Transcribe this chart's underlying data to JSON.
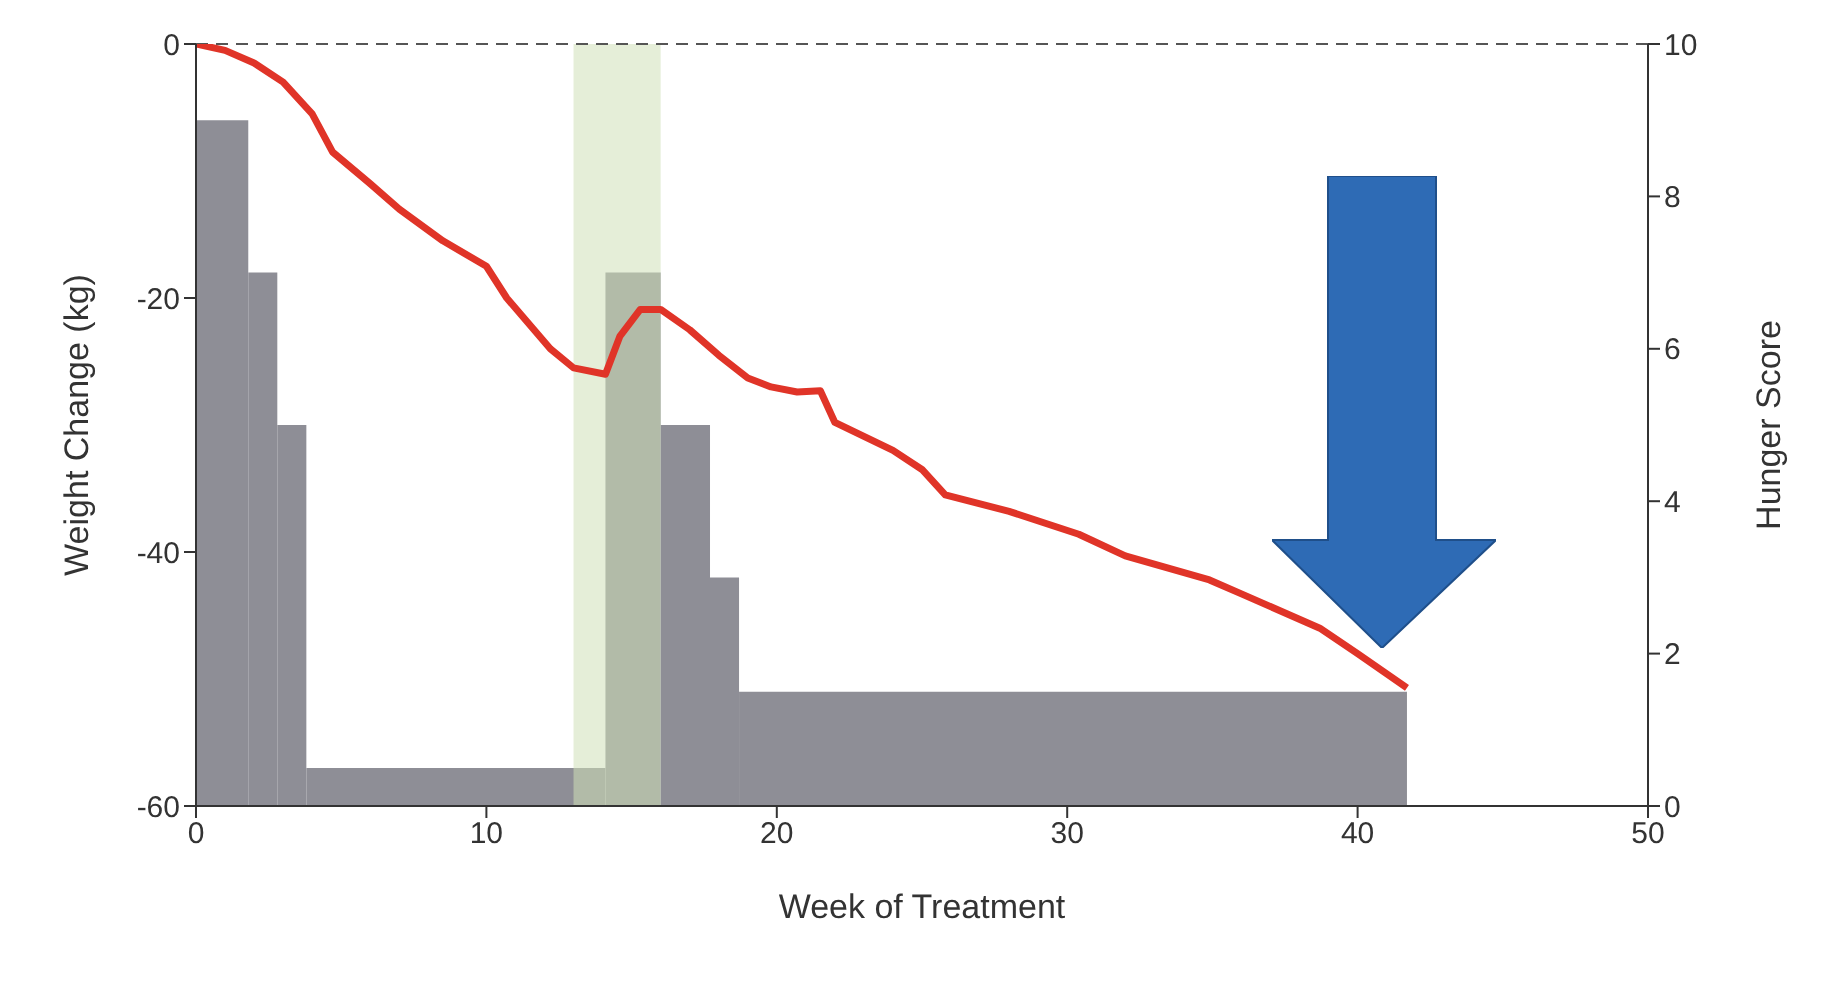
{
  "chart_data": {
    "type": "line",
    "xlabel": "Week of Treatment",
    "ylabel": "Weight Change (kg)",
    "y2label": "Hunger Score",
    "xlim": [
      0,
      50
    ],
    "xticks": [
      0,
      10,
      20,
      30,
      40,
      50
    ],
    "ylim": [
      -60,
      0
    ],
    "yticks": [
      -60,
      -40,
      -20,
      0
    ],
    "y2lim": [
      0,
      10
    ],
    "y2ticks": [
      0,
      2,
      4,
      6,
      8,
      10
    ],
    "grid": false,
    "legend": false,
    "marker": "none",
    "series": [
      {
        "type": "histogram",
        "axis": "y2",
        "color": "#8e8e96",
        "bins": [
          0,
          1.8,
          2.8,
          3.8,
          14.1,
          16,
          17.7,
          18.7,
          41.7
        ],
        "values": [
          9,
          7,
          5,
          0.5,
          7,
          5,
          3,
          1.5
        ]
      },
      {
        "color": "#e03428",
        "x": [
          0,
          1,
          2,
          3,
          4,
          4.7,
          6,
          7,
          8.5,
          10,
          10.7,
          12.2,
          13,
          14.1,
          14.6,
          15.3,
          16,
          17,
          18,
          19,
          19.8,
          20.7,
          21.5,
          22,
          24,
          25,
          25.8,
          28,
          30.4,
          32,
          34.9,
          36,
          38.7,
          40,
          41.7
        ],
        "values": [
          0,
          -0.5,
          -1.5,
          -3,
          -5.5,
          -8.5,
          -11,
          -13,
          -15.5,
          -17.5,
          -20,
          -24,
          -25.5,
          -26,
          -23,
          -20.9,
          -20.9,
          -22.5,
          -24.5,
          -26.3,
          -27,
          -27.4,
          -27.3,
          -29.8,
          -32,
          -33.5,
          -35.5,
          -36.8,
          -38.6,
          -40.3,
          -42.2,
          -43.3,
          -46,
          -48,
          -50.7
        ]
      }
    ],
    "bands": [
      {
        "axis": "x",
        "from": 13,
        "to": 16,
        "color": "#cfe0b8"
      }
    ],
    "ref_lines": [
      {
        "axis": "y",
        "value": 0,
        "line_style": "dashed",
        "color": "#555555"
      }
    ]
  }
}
